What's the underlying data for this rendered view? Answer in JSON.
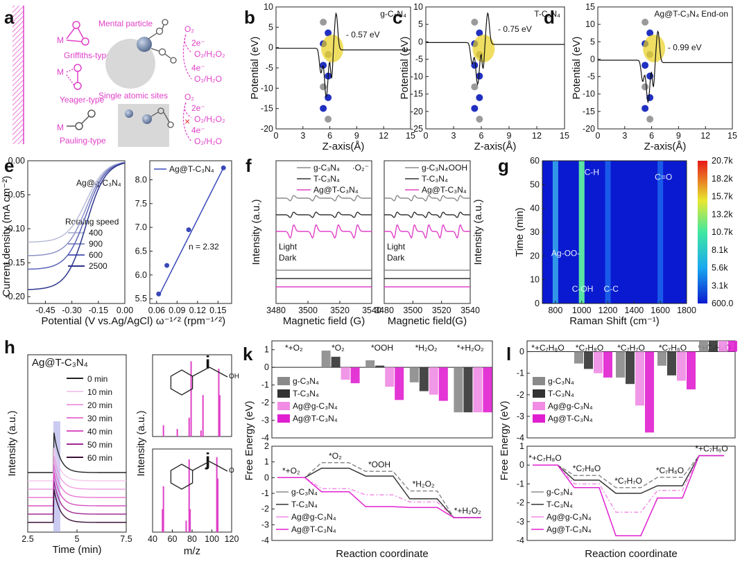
{
  "panel_letters": [
    "a",
    "b",
    "c",
    "d",
    "e",
    "f",
    "g",
    "h",
    "i",
    "j",
    "k",
    "l"
  ],
  "panel_a": {
    "griffiths": "Griffiths-type",
    "yeager": "Yeager-type",
    "pauling": "Pauling-type",
    "metal_particle": "Mental particle",
    "single_sites": "Single atomic sites",
    "m": "M",
    "o2": "O₂",
    "two_e": "2e⁻",
    "four_e": "4e⁻",
    "h2o2": "O₂/H₂O₂",
    "h2o": "O₂/H₂O"
  },
  "palette": {
    "pink": "#e040c8",
    "blue": "#3848b8",
    "gray": "#8a8a8a",
    "dark": "#333333"
  },
  "chart_data": [
    {
      "id": "b",
      "type": "line",
      "label": "g-C₃N₄",
      "annotation": "- 0.57 eV",
      "xlabel": "Z-axis(Å)",
      "ylabel": "Potential (eV)",
      "xlim": [
        0,
        15
      ],
      "ylim": [
        -20,
        10
      ],
      "xticks": [
        0,
        3,
        6,
        9,
        12,
        15
      ],
      "yticks": [
        -20,
        -15,
        -10,
        -5,
        0,
        5,
        10
      ],
      "vacuum_level": -0.57
    },
    {
      "id": "c",
      "type": "line",
      "label": "T-C₃N₄",
      "annotation": "- 0.75 eV",
      "xlabel": "Z-axis(Å)",
      "ylabel": "Potential (eV)",
      "xlim": [
        0,
        15
      ],
      "ylim": [
        -25,
        10
      ],
      "xticks": [
        0,
        3,
        6,
        9,
        12,
        15
      ],
      "yticks": [
        -25,
        -20,
        -15,
        -10,
        -5,
        0,
        5,
        10
      ],
      "vacuum_level": -0.75
    },
    {
      "id": "d",
      "type": "line",
      "label": "Ag@T-C₃N₄ End-on",
      "annotation": "- 0.99 eV",
      "xlabel": "Z-axis(Å)",
      "ylabel": "Potential (eV)",
      "xlim": [
        0,
        15
      ],
      "ylim": [
        -20,
        15
      ],
      "xticks": [
        0,
        3,
        6,
        9,
        12,
        15
      ],
      "yticks": [
        -20,
        -15,
        -10,
        -5,
        0,
        5,
        10,
        15
      ],
      "vacuum_level": -0.99
    },
    {
      "id": "e_left",
      "type": "line",
      "label": "Ag@g-C₃N₄",
      "legend_title": "Rotaing speed",
      "xlabel": "Potential (V vs.Ag/AgCl)",
      "ylabel": "Current density (mA cm⁻²)",
      "xlim": [
        -0.55,
        0.0
      ],
      "ylim": [
        -0.21,
        0.0
      ],
      "xticks": [
        -0.45,
        -0.3,
        -0.15,
        0.0
      ],
      "xtick_labels": [
        "-0.45",
        "-0.30",
        "-0.15",
        "0.00"
      ],
      "yticks": [
        0.0,
        -0.05,
        -0.1,
        -0.15,
        -0.2
      ],
      "ytick_labels": [
        "0.00",
        "-0.05",
        "-0.10",
        "-0.15",
        "-0.20"
      ],
      "series": [
        {
          "name": "400",
          "color": "#b8bcd8",
          "limit": -0.12
        },
        {
          "name": "900",
          "color": "#8c92c8",
          "limit": -0.14
        },
        {
          "name": "600",
          "color": "#5a62b8",
          "limit": -0.16
        },
        {
          "name": "2500",
          "color": "#2c348c",
          "limit": -0.19
        }
      ]
    },
    {
      "id": "e_right",
      "type": "scatter",
      "label": "Ag@T-C₃N₄",
      "annotation": "n = 2.32",
      "xlabel": "ω⁻¹ᐟ² (rpm⁻¹ᐟ²)",
      "xlim": [
        0.05,
        0.17
      ],
      "ylim": [
        5.4,
        8.4
      ],
      "xticks": [
        0.06,
        0.09,
        0.12,
        0.15
      ],
      "yticks": [
        5.5,
        6.0,
        6.5,
        7.0,
        7.5,
        8.0
      ],
      "xtick_labels": [
        "0.06",
        "0.09",
        "0.12",
        "0.15"
      ],
      "ytick_labels": [
        "5.5",
        "6.0",
        "6.5",
        "7.0",
        "7.5",
        "8.0"
      ],
      "x": [
        0.063,
        0.075,
        0.107,
        0.158
      ],
      "y": [
        5.6,
        6.2,
        6.95,
        8.25
      ]
    },
    {
      "id": "f_left",
      "type": "line",
      "label": "·O₂⁻",
      "xlabel": "Magnetic field (G)",
      "ylabel": "Intensity (a.u.)",
      "xlim": [
        3480,
        3540
      ],
      "xticks": [
        3480,
        3500,
        3520,
        3540
      ],
      "markers": [
        "Light",
        "Dark"
      ],
      "series": [
        {
          "name": "g-C₃N₄",
          "color": "#8a8a8a"
        },
        {
          "name": "T-C₃N₄",
          "color": "#333333"
        },
        {
          "name": "Ag@T-C₃N₄",
          "color": "#e040c8"
        }
      ]
    },
    {
      "id": "f_right",
      "type": "line",
      "label": "·OOH",
      "xlabel": "Magnetic field(G)",
      "ylabel": "Intensity (a.u.)",
      "xlim": [
        3480,
        3540
      ],
      "xticks": [
        3480,
        3500,
        3520,
        3540
      ],
      "markers": [
        "Light",
        "Dark"
      ],
      "series": [
        {
          "name": "g-C₃N₄",
          "color": "#8a8a8a"
        },
        {
          "name": "T-C₃N₄",
          "color": "#333333"
        },
        {
          "name": "Ag@T-C₃N₄",
          "color": "#e040c8"
        }
      ]
    },
    {
      "id": "g",
      "type": "heatmap",
      "xlabel": "Raman Shift (cm⁻¹)",
      "ylabel": "Time (min)",
      "xlim": [
        700,
        1800
      ],
      "ylim": [
        0,
        60
      ],
      "xticks": [
        800,
        1000,
        1200,
        1400,
        1600,
        1800
      ],
      "yticks": [
        0,
        10,
        20,
        30,
        40,
        50,
        60
      ],
      "bands": [
        {
          "shift": 800,
          "label": "Ag-OO-"
        },
        {
          "shift": 1000,
          "label": "C-H"
        },
        {
          "shift": 1000,
          "label": "C-OH"
        },
        {
          "shift": 1200,
          "label": "C-C"
        },
        {
          "shift": 1600,
          "label": "C=O"
        }
      ],
      "colorbar": [
        "20.7k",
        "18.2k",
        "15.7k",
        "13.2k",
        "10.7k",
        "8.1k",
        "5.6k",
        "3.1k",
        "600.0"
      ]
    },
    {
      "id": "h",
      "type": "line",
      "label": "Ag@T-C₃N₄",
      "xlabel": "Time (min)",
      "ylabel": "Intensity (a.u.)",
      "xlim": [
        2.5,
        7.5
      ],
      "xticks": [
        2.5,
        5.0,
        7.5
      ],
      "series": [
        {
          "name": "0 min",
          "color": "#222222"
        },
        {
          "name": "10 min",
          "color": "#f4c8ec"
        },
        {
          "name": "20 min",
          "color": "#ee9ee0"
        },
        {
          "name": "30 min",
          "color": "#e878d4"
        },
        {
          "name": "40 min",
          "color": "#d850c0"
        },
        {
          "name": "50 min",
          "color": "#a02890"
        },
        {
          "name": "60 min",
          "color": "#3a1036"
        }
      ]
    },
    {
      "id": "i",
      "type": "bar",
      "xlabel": "m/z",
      "ylabel": "Intensity (a.u.)",
      "substituent": "OH",
      "x": [
        51,
        65,
        77,
        79,
        89,
        91,
        107,
        108
      ],
      "values": [
        0.15,
        0.1,
        0.25,
        1.0,
        0.08,
        0.55,
        0.9,
        0.55
      ]
    },
    {
      "id": "j",
      "type": "bar",
      "xlabel": "m/z",
      "ylabel": "Intensity (a.u.)",
      "substituent": "O",
      "xlim": [
        40,
        120
      ],
      "xticks": [
        40,
        60,
        80,
        100,
        120
      ],
      "x": [
        50,
        51,
        74,
        77,
        78,
        105,
        106
      ],
      "values": [
        0.3,
        0.6,
        0.15,
        0.95,
        0.3,
        0.98,
        0.7
      ]
    },
    {
      "id": "k",
      "type": "bar",
      "xlabel": "Reaction coordinate",
      "ylabel": "Free Energy (eV)",
      "ylim": [
        -4,
        2
      ],
      "yticks": [
        -4,
        -3,
        -2,
        -1,
        0,
        1,
        2
      ],
      "steps": [
        "*+O₂",
        "*O₂",
        "*OOH",
        "*H₂O₂",
        "*+H₂O₂"
      ],
      "series": [
        {
          "name": "g-C₃N₄",
          "color": "#8a8a8a",
          "values": [
            0,
            0.95,
            0.4,
            -0.85,
            -2.55
          ]
        },
        {
          "name": "T-C₃N₄",
          "color": "#333333",
          "values": [
            0,
            0.6,
            0.1,
            -1.35,
            -2.55
          ]
        },
        {
          "name": "Ag@g-C₃N₄",
          "color": "#f08ce4",
          "values": [
            0,
            -0.7,
            -1.1,
            -1.55,
            -2.55
          ]
        },
        {
          "name": "Ag@T-C₃N₄",
          "color": "#e020d0",
          "values": [
            0,
            -0.9,
            -1.85,
            -1.9,
            -2.55
          ]
        }
      ]
    },
    {
      "id": "l",
      "type": "bar",
      "xlabel": "Reaction coordinate",
      "ylabel": "Free Energy (eV)",
      "ylim": [
        -4,
        1
      ],
      "yticks": [
        -4,
        -3,
        -2,
        -1,
        0,
        1
      ],
      "steps": [
        "*+C₇H₈O",
        "*C₇H₈O",
        "*C₇H₇O",
        "*C₇H₆O",
        "*+C₇H₆O"
      ],
      "series": [
        {
          "name": "g-C₃N₄",
          "color": "#8a8a8a",
          "values": [
            0,
            -0.55,
            -1.2,
            -0.65,
            0.5
          ]
        },
        {
          "name": "T-C₃N₄",
          "color": "#333333",
          "values": [
            0,
            -0.8,
            -1.5,
            -1.1,
            0.5
          ]
        },
        {
          "name": "Ag@g-C₃N₄",
          "color": "#f08ce4",
          "values": [
            0,
            -1.0,
            -2.5,
            -1.35,
            0.5
          ]
        },
        {
          "name": "Ag@T-C₃N₄",
          "color": "#e020d0",
          "values": [
            0,
            -1.2,
            -3.75,
            -1.75,
            0.5
          ]
        }
      ]
    }
  ]
}
